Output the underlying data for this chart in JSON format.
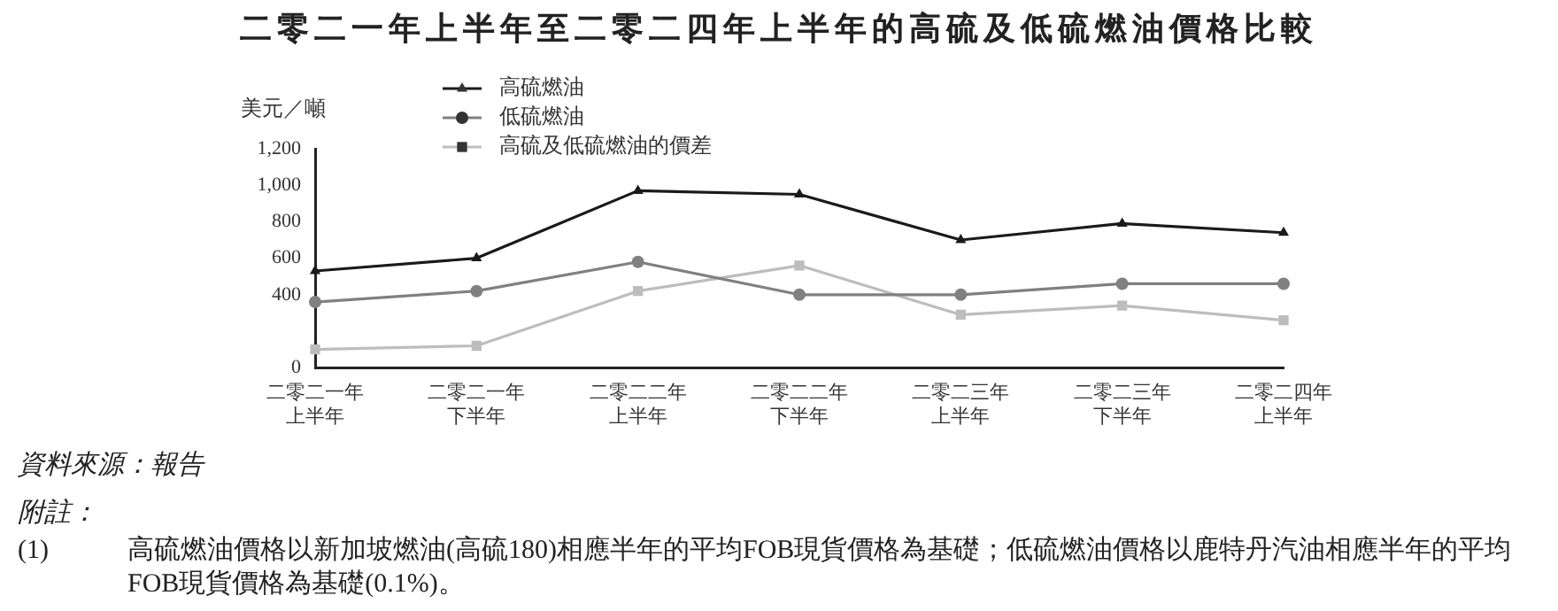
{
  "chart_data": {
    "type": "line",
    "title": "二零二一年上半年至二零二四年上半年的高硫及低硫燃油價格比較",
    "ylabel": "美元／噸",
    "categories": [
      "二零二一年上半年",
      "二零二一年下半年",
      "二零二二年上半年",
      "二零二二年下半年",
      "二零二三年上半年",
      "二零二三年下半年",
      "二零二四年上半年"
    ],
    "series": [
      {
        "name": "高硫燃油",
        "color": "#1a1a1a",
        "marker": "triangle",
        "values": [
          530,
          600,
          970,
          950,
          700,
          790,
          740
        ]
      },
      {
        "name": "低硫燃油",
        "color": "#808080",
        "marker": "circle",
        "values": [
          360,
          420,
          580,
          400,
          400,
          460,
          460
        ]
      },
      {
        "name": "高硫及低硫燃油的價差",
        "color": "#bdbdbd",
        "marker": "square",
        "values": [
          100,
          120,
          420,
          560,
          290,
          340,
          260
        ]
      }
    ],
    "ylim": [
      0,
      1200
    ],
    "yticks": [
      0,
      400,
      600,
      800,
      {
        "value": 1000,
        "label": "1,000"
      },
      {
        "value": 1200,
        "label": "1,200"
      }
    ],
    "grid": false,
    "legend": "top",
    "line_style": "solid",
    "annotations": [
      "資料來源：報告",
      "附註：",
      "(1)\t高硫燃油價格以新加坡燃油(高硫180)相應半年的平均FOB現貨價格為基礎；低硫燃油價格以鹿特丹汽油相應半年的平均FOB現貨價格為基礎(0.1%)。"
    ]
  }
}
